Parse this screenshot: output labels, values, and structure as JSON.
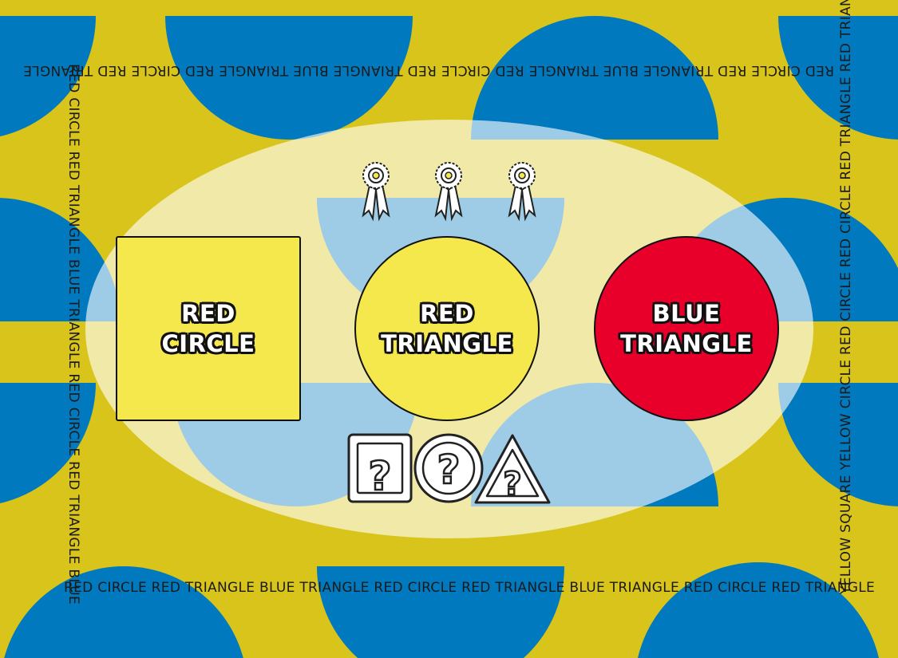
{
  "colors": {
    "background": "#d8c41a",
    "shape_blue": "#0079be",
    "card_yellow": "#f4e84c",
    "card_red": "#e8002a",
    "outline": "#111111"
  },
  "border": {
    "top": "RED CIRCLE RED TRIANGLE BLUE TRIANGLE RED CIRCLE RED TRIANGLE BLUE TRIANGLE RED CIRCLE RED TRIANGLE",
    "bottom": "RED CIRCLE RED TRIANGLE BLUE TRIANGLE RED CIRCLE RED TRIANGLE BLUE TRIANGLE RED CIRCLE RED TRIANGLE",
    "left": "RED CIRCLE RED TRIANGLE BLUE TRIANGLE RED CIRCLE RED TRIANGLE BLUE",
    "right": "YELLOW SQUARE YELLOW CIRCLE RED CIRCLE RED CIRCLE RED TRIANGLE RED TRIANGLE BLUE"
  },
  "cards": [
    {
      "shape": "square",
      "fill": "yellow",
      "label": "RED\nCIRCLE"
    },
    {
      "shape": "circle",
      "fill": "yellow",
      "label": "RED\nTRIANGLE"
    },
    {
      "shape": "circle",
      "fill": "red",
      "label": "BLUE\nTRIANGLE"
    }
  ],
  "rewards": {
    "icon": "rosette-ribbon-icon",
    "count": 3
  },
  "mystery_icons": [
    "question-square-icon",
    "question-circle-icon",
    "question-triangle-icon"
  ]
}
